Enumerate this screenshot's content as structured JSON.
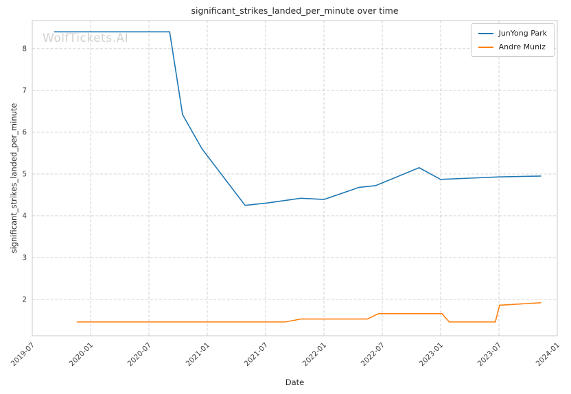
{
  "watermark": "WolfTickets.AI",
  "chart_data": {
    "type": "line",
    "title": "significant_strikes_landed_per_minute over time",
    "xlabel": "Date",
    "ylabel": "significant_strikes_landed_per_minute",
    "grid": true,
    "legend_position": "upper right",
    "xlim_decimal_years": [
      2019.5,
      2024.0
    ],
    "ylim": [
      1.13,
      8.67
    ],
    "xticks": [
      "2019-07",
      "2020-01",
      "2020-07",
      "2021-01",
      "2021-07",
      "2022-01",
      "2022-07",
      "2023-01",
      "2023-07",
      "2024-01"
    ],
    "yticks": [
      2,
      3,
      4,
      5,
      6,
      7,
      8
    ],
    "series": [
      {
        "name": "JunYong Park",
        "color": "#1f77b4",
        "points": [
          [
            "2019-09-10",
            8.4
          ],
          [
            "2020-09-05",
            8.4
          ],
          [
            "2020-10-15",
            6.42
          ],
          [
            "2020-12-15",
            5.6
          ],
          [
            "2021-04-28",
            4.25
          ],
          [
            "2021-07-01",
            4.3
          ],
          [
            "2021-10-20",
            4.42
          ],
          [
            "2022-01-01",
            4.39
          ],
          [
            "2022-04-20",
            4.68
          ],
          [
            "2022-06-10",
            4.72
          ],
          [
            "2022-10-25",
            5.15
          ],
          [
            "2023-01-01",
            4.87
          ],
          [
            "2023-04-01",
            4.9
          ],
          [
            "2023-07-01",
            4.93
          ],
          [
            "2023-11-10",
            4.95
          ]
        ]
      },
      {
        "name": "Andre Muniz",
        "color": "#ff7f0e",
        "points": [
          [
            "2019-11-20",
            1.46
          ],
          [
            "2021-09-01",
            1.46
          ],
          [
            "2021-10-20",
            1.53
          ],
          [
            "2022-05-15",
            1.53
          ],
          [
            "2022-06-20",
            1.66
          ],
          [
            "2023-01-05",
            1.66
          ],
          [
            "2023-01-28",
            1.46
          ],
          [
            "2023-06-20",
            1.46
          ],
          [
            "2023-07-03",
            1.86
          ],
          [
            "2023-11-10",
            1.92
          ]
        ]
      }
    ]
  }
}
